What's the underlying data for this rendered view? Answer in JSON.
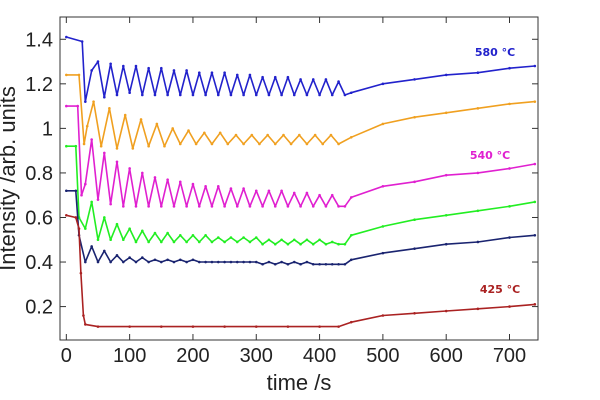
{
  "chart_data": {
    "type": "line",
    "title": "",
    "xlabel": "time /s",
    "ylabel": "Intensity /arb. units",
    "xlim": [
      -10,
      745
    ],
    "ylim": [
      0.05,
      1.5
    ],
    "grid": false,
    "x_ticks": [
      0,
      100,
      200,
      300,
      400,
      500,
      600,
      700
    ],
    "y_ticks": [
      0.2,
      0.4,
      0.6,
      0.8,
      1,
      1.2,
      1.4
    ],
    "x_tick_labels": [
      "0",
      "100",
      "200",
      "300",
      "400",
      "500",
      "600",
      "700"
    ],
    "y_tick_labels": [
      "0.2",
      "0.4",
      "0.6",
      "0.8",
      "1",
      "1.2",
      "1.4"
    ],
    "series": [
      {
        "name": "580 °C",
        "color": "#2222cc",
        "x": [
          0,
          25,
          30,
          40,
          50,
          60,
          70,
          80,
          90,
          100,
          110,
          120,
          130,
          140,
          150,
          160,
          170,
          180,
          190,
          200,
          210,
          220,
          230,
          240,
          250,
          260,
          270,
          280,
          290,
          300,
          310,
          320,
          330,
          340,
          350,
          360,
          370,
          380,
          390,
          400,
          410,
          420,
          430,
          440,
          450,
          500,
          550,
          600,
          650,
          700,
          740
        ],
        "y": [
          1.41,
          1.39,
          1.12,
          1.26,
          1.3,
          1.14,
          1.29,
          1.15,
          1.28,
          1.16,
          1.28,
          1.15,
          1.27,
          1.15,
          1.27,
          1.15,
          1.26,
          1.15,
          1.26,
          1.15,
          1.25,
          1.15,
          1.25,
          1.15,
          1.25,
          1.15,
          1.24,
          1.15,
          1.24,
          1.15,
          1.23,
          1.15,
          1.23,
          1.15,
          1.23,
          1.15,
          1.22,
          1.15,
          1.22,
          1.15,
          1.22,
          1.15,
          1.21,
          1.15,
          1.16,
          1.2,
          1.22,
          1.24,
          1.25,
          1.27,
          1.28
        ]
      },
      {
        "name": "",
        "color": "#f0a020",
        "x": [
          0,
          20,
          28,
          33,
          43,
          55,
          68,
          80,
          93,
          105,
          118,
          130,
          143,
          155,
          168,
          180,
          193,
          205,
          218,
          230,
          243,
          255,
          268,
          280,
          293,
          305,
          318,
          330,
          343,
          355,
          368,
          380,
          393,
          405,
          418,
          430,
          450,
          500,
          550,
          600,
          650,
          700,
          740
        ],
        "y": [
          1.24,
          1.24,
          0.93,
          1.01,
          1.12,
          0.92,
          1.09,
          0.91,
          1.06,
          0.91,
          1.04,
          0.92,
          1.02,
          0.92,
          1.0,
          0.93,
          0.99,
          0.93,
          0.98,
          0.93,
          0.98,
          0.93,
          0.97,
          0.93,
          0.97,
          0.93,
          0.97,
          0.93,
          0.97,
          0.93,
          0.97,
          0.93,
          0.97,
          0.93,
          0.97,
          0.93,
          0.96,
          1.02,
          1.05,
          1.07,
          1.09,
          1.11,
          1.12
        ]
      },
      {
        "name": "540 °C",
        "color": "#e020d0",
        "x": [
          0,
          18,
          24,
          30,
          40,
          50,
          60,
          70,
          80,
          90,
          100,
          110,
          120,
          130,
          140,
          150,
          160,
          170,
          180,
          190,
          200,
          210,
          220,
          230,
          240,
          250,
          260,
          270,
          280,
          290,
          300,
          310,
          320,
          330,
          340,
          350,
          360,
          370,
          380,
          390,
          400,
          410,
          420,
          430,
          440,
          450,
          500,
          550,
          600,
          650,
          700,
          740
        ],
        "y": [
          1.1,
          1.1,
          0.7,
          0.75,
          0.95,
          0.68,
          0.89,
          0.66,
          0.85,
          0.65,
          0.82,
          0.65,
          0.8,
          0.65,
          0.78,
          0.65,
          0.77,
          0.65,
          0.76,
          0.65,
          0.75,
          0.65,
          0.74,
          0.65,
          0.74,
          0.65,
          0.73,
          0.65,
          0.73,
          0.65,
          0.72,
          0.65,
          0.72,
          0.65,
          0.72,
          0.65,
          0.71,
          0.65,
          0.71,
          0.65,
          0.7,
          0.65,
          0.7,
          0.65,
          0.65,
          0.69,
          0.74,
          0.76,
          0.79,
          0.8,
          0.82,
          0.84
        ]
      },
      {
        "name": "",
        "color": "#22ee22",
        "x": [
          0,
          15,
          20,
          30,
          40,
          50,
          60,
          70,
          80,
          90,
          100,
          110,
          120,
          130,
          140,
          150,
          160,
          170,
          180,
          190,
          200,
          210,
          220,
          230,
          240,
          250,
          260,
          270,
          280,
          290,
          300,
          310,
          320,
          330,
          340,
          350,
          360,
          370,
          380,
          390,
          400,
          410,
          420,
          430,
          440,
          450,
          500,
          550,
          600,
          650,
          700,
          740
        ],
        "y": [
          0.92,
          0.92,
          0.6,
          0.55,
          0.67,
          0.5,
          0.6,
          0.5,
          0.57,
          0.5,
          0.55,
          0.49,
          0.54,
          0.49,
          0.53,
          0.49,
          0.53,
          0.49,
          0.52,
          0.49,
          0.52,
          0.49,
          0.52,
          0.49,
          0.51,
          0.49,
          0.51,
          0.49,
          0.51,
          0.49,
          0.51,
          0.48,
          0.5,
          0.48,
          0.5,
          0.48,
          0.5,
          0.48,
          0.5,
          0.48,
          0.5,
          0.48,
          0.49,
          0.48,
          0.48,
          0.52,
          0.56,
          0.59,
          0.61,
          0.63,
          0.65,
          0.67
        ]
      },
      {
        "name": "",
        "color": "#1a2470",
        "x": [
          0,
          15,
          20,
          30,
          40,
          50,
          60,
          70,
          80,
          90,
          100,
          110,
          120,
          130,
          140,
          150,
          160,
          170,
          180,
          190,
          200,
          210,
          220,
          230,
          240,
          250,
          260,
          270,
          280,
          290,
          300,
          310,
          320,
          330,
          340,
          350,
          360,
          370,
          380,
          390,
          400,
          410,
          420,
          430,
          440,
          450,
          500,
          550,
          600,
          650,
          700,
          740
        ],
        "y": [
          0.72,
          0.72,
          0.52,
          0.4,
          0.47,
          0.4,
          0.45,
          0.4,
          0.43,
          0.4,
          0.42,
          0.4,
          0.42,
          0.4,
          0.41,
          0.4,
          0.41,
          0.4,
          0.41,
          0.4,
          0.41,
          0.4,
          0.4,
          0.4,
          0.4,
          0.4,
          0.4,
          0.4,
          0.4,
          0.4,
          0.4,
          0.39,
          0.4,
          0.39,
          0.4,
          0.39,
          0.4,
          0.39,
          0.4,
          0.39,
          0.39,
          0.39,
          0.39,
          0.39,
          0.39,
          0.41,
          0.44,
          0.46,
          0.48,
          0.49,
          0.51,
          0.52
        ]
      },
      {
        "name": "425 °C",
        "color": "#aa2222",
        "x": [
          0,
          15,
          20,
          23,
          27,
          30,
          50,
          100,
          150,
          200,
          250,
          300,
          350,
          400,
          430,
          450,
          500,
          550,
          600,
          650,
          700,
          740
        ],
        "y": [
          0.61,
          0.6,
          0.55,
          0.35,
          0.16,
          0.12,
          0.11,
          0.11,
          0.11,
          0.11,
          0.11,
          0.11,
          0.11,
          0.11,
          0.11,
          0.13,
          0.16,
          0.17,
          0.18,
          0.19,
          0.2,
          0.21
        ]
      }
    ]
  }
}
